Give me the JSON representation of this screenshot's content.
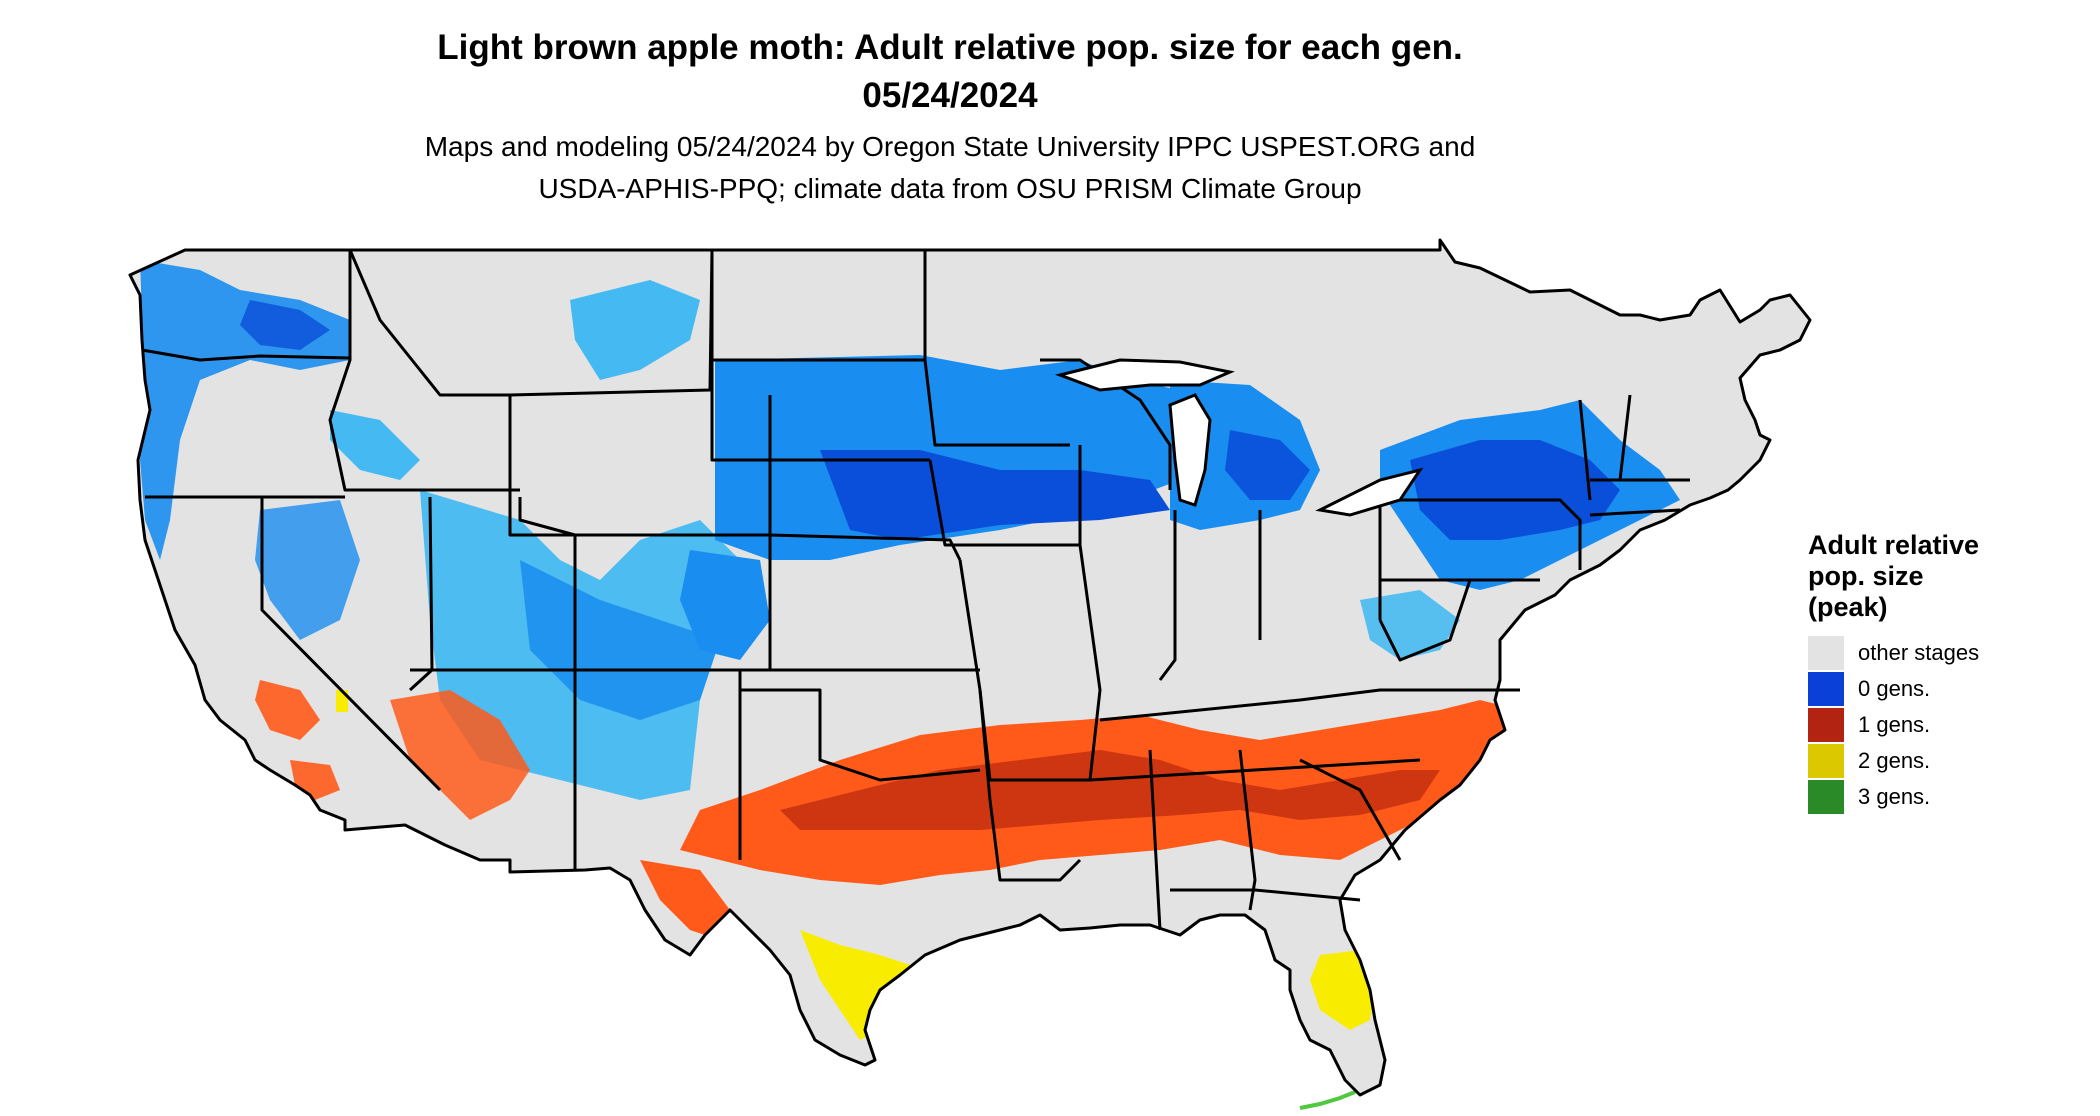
{
  "title": {
    "line1": "Light brown apple moth: Adult relative pop. size for each gen.",
    "line2": "05/24/2024"
  },
  "subtitle": {
    "line1": "Maps and modeling 05/24/2024 by Oregon State University IPPC USPEST.ORG and",
    "line2": "USDA-APHIS-PPQ; climate data from OSU PRISM Climate Group"
  },
  "legend": {
    "title_lines": [
      "Adult relative",
      "pop. size",
      "(peak)"
    ],
    "items": [
      {
        "label": "other stages",
        "color": "#e3e3e3"
      },
      {
        "label": "0 gens.",
        "color": "#0a3fd8"
      },
      {
        "label": "1 gens.",
        "color": "#b22312"
      },
      {
        "label": "2 gens.",
        "color": "#dcc800"
      },
      {
        "label": "3 gens.",
        "color": "#2a8a27"
      }
    ]
  },
  "map_colors": {
    "land": "#e3e3e3",
    "border": "#000000",
    "blue_light": "#33b5f3",
    "blue_mid": "#1a8df0",
    "blue_dark": "#0a4fd9",
    "orange_light": "#ff5a1a",
    "orange_dark": "#c4300f",
    "yellow": "#f8ec00",
    "green": "#50c840"
  }
}
